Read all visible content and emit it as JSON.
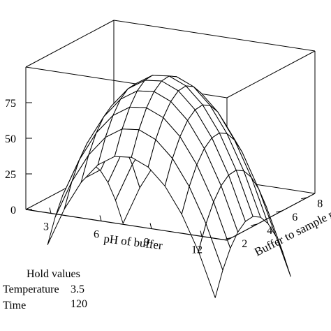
{
  "chart_data": {
    "type": "surface",
    "x_axis": {
      "label": "pH of buffer",
      "ticks": [
        3,
        6,
        9,
        12
      ],
      "range": [
        1.5,
        13.5
      ]
    },
    "y_axis": {
      "label": "Buffer to sample ra",
      "ticks": [
        2,
        4,
        6,
        8
      ],
      "range": [
        1.6,
        8.6
      ]
    },
    "z_axis": {
      "label": "",
      "tick_labels": [
        "0",
        "25",
        "50",
        "75"
      ],
      "ticks": [
        0,
        25,
        50,
        75
      ],
      "range": [
        0,
        100
      ]
    },
    "surface": {
      "model": "z = 89 - 3.2*(x - 7.2)^2 - 5.5*(y - 4.8)^2",
      "x_range": [
        2.5,
        12.5
      ],
      "y_range": [
        2,
        8
      ],
      "grid": [
        11,
        11
      ]
    },
    "hold_values": {
      "title": "Hold values",
      "rows": [
        {
          "name": "Temperature",
          "value": "3.5"
        },
        {
          "name": "Time",
          "value": "120"
        }
      ]
    }
  }
}
